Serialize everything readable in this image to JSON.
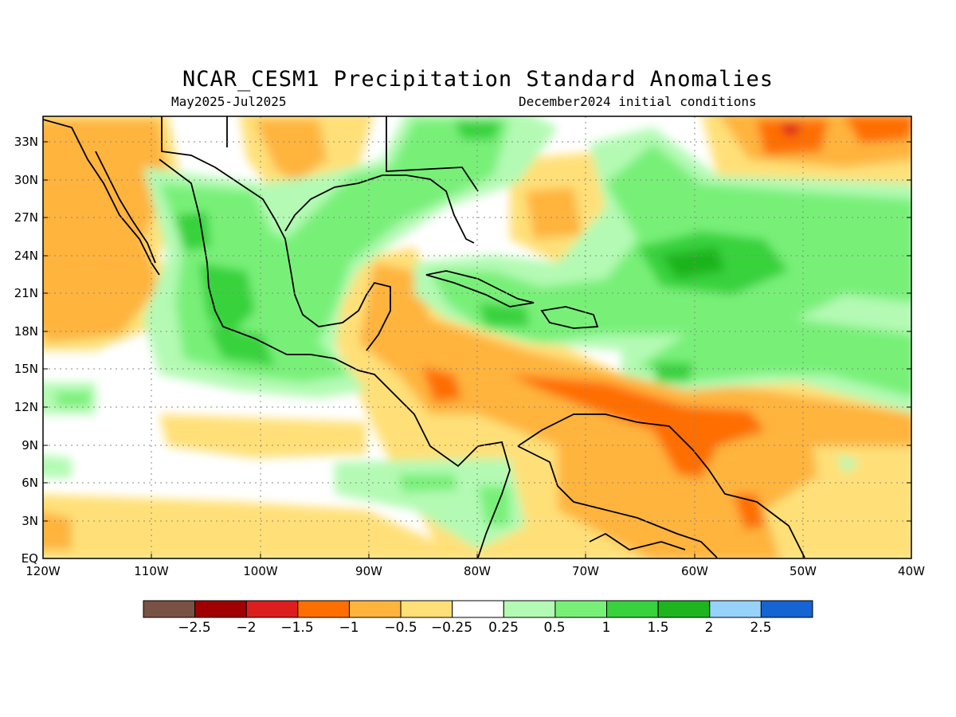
{
  "title": "NCAR_CESM1 Precipitation Standard Anomalies",
  "subtitle_left": "May2025-Jul2025",
  "subtitle_right": "December2024 initial conditions",
  "lat_labels": [
    "33N",
    "30N",
    "27N",
    "24N",
    "21N",
    "18N",
    "15N",
    "12N",
    "9N",
    "6N",
    "3N",
    "EQ"
  ],
  "lon_labels": [
    "120W",
    "110W",
    "100W",
    "90W",
    "80W",
    "70W",
    "60W",
    "50W",
    "40W"
  ],
  "colorbar": {
    "colors": [
      "#7a5145",
      "#a00000",
      "#dc1e1e",
      "#ff6e00",
      "#ffb43c",
      "#ffe078",
      "#ffffff",
      "#b4fab4",
      "#78f078",
      "#37d23c",
      "#1eb41e",
      "#96d2fa",
      "#1464d2"
    ],
    "labels": [
      "−2.5",
      "−2",
      "−1.5",
      "−1",
      "−0.5",
      "−0.25",
      "0.25",
      "0.5",
      "1",
      "1.5",
      "2",
      "2.5"
    ]
  },
  "map": {
    "extent": {
      "lon": [
        -120,
        -40
      ],
      "lat": [
        0,
        35
      ]
    },
    "grid_lines": "dotted"
  }
}
